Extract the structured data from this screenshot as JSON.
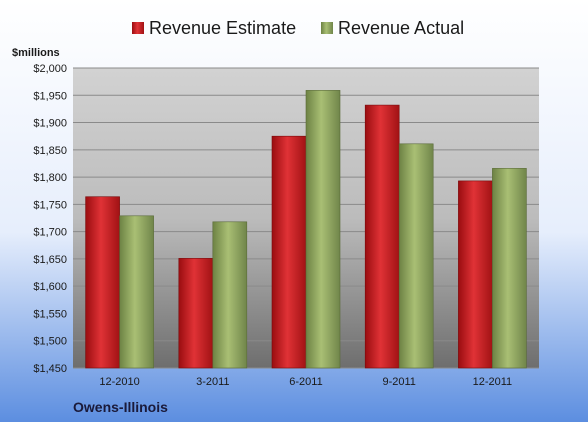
{
  "chart_data": {
    "type": "bar",
    "ylabel": "$millions",
    "footer_label": "Owens-Illinois",
    "categories": [
      "12-2010",
      "3-2011",
      "6-2011",
      "9-2011",
      "12-2011"
    ],
    "series": [
      {
        "name": "Revenue Estimate",
        "color": "#c0191c",
        "values": [
          1764,
          1651,
          1875,
          1932,
          1793
        ]
      },
      {
        "name": "Revenue Actual",
        "color": "#8aa05a",
        "values": [
          1729,
          1718,
          1959,
          1861,
          1816
        ]
      }
    ],
    "ylim": [
      1450,
      2000
    ],
    "yticks": [
      1450,
      1500,
      1550,
      1600,
      1650,
      1700,
      1750,
      1800,
      1850,
      1900,
      1950,
      2000
    ],
    "ytick_labels": [
      "$1,450",
      "$1,500",
      "$1,550",
      "$1,600",
      "$1,650",
      "$1,700",
      "$1,750",
      "$1,800",
      "$1,850",
      "$1,900",
      "$1,950",
      "$2,000"
    ],
    "grid": true,
    "legend_position": "top-center"
  }
}
